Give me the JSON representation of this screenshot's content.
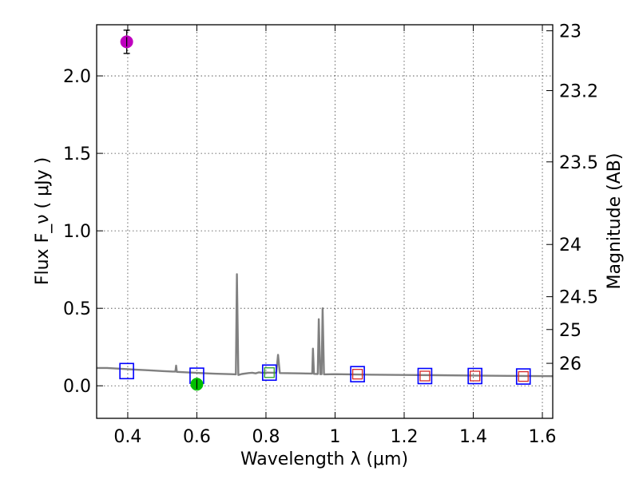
{
  "chart_data": {
    "type": "scatter",
    "title": "",
    "xlabel": "Wavelength  λ (μm)",
    "ylabel": "Flux  F_ν  ( μJy )",
    "ylabel_right": "Magnitude (AB)",
    "xlim": [
      0.31,
      1.63
    ],
    "ylim": [
      -0.21,
      2.33
    ],
    "grid": true,
    "x_ticks": [
      0.4,
      0.6,
      0.8,
      1.0,
      1.2,
      1.4,
      1.6
    ],
    "x_tick_labels": [
      "0.4",
      "0.6",
      "0.8",
      "1",
      "1.2",
      "1.4",
      "1.6"
    ],
    "y_ticks": [
      0.0,
      0.5,
      1.0,
      1.5,
      2.0
    ],
    "y_tick_labels": [
      "0.0",
      "0.5",
      "1.0",
      "1.5",
      "2.0"
    ],
    "right_ticks": [
      {
        "label": "23",
        "flux": 2.291
      },
      {
        "label": "23.2",
        "flux": 1.905
      },
      {
        "label": "23.5",
        "flux": 1.445
      },
      {
        "label": "24",
        "flux": 0.912
      },
      {
        "label": "24.5",
        "flux": 0.575
      },
      {
        "label": "25",
        "flux": 0.363
      },
      {
        "label": "26",
        "flux": 0.145
      }
    ],
    "model_spectrum": {
      "color": "#808080",
      "points": [
        [
          0.31,
          0.115
        ],
        [
          0.34,
          0.115
        ],
        [
          0.38,
          0.11
        ],
        [
          0.42,
          0.105
        ],
        [
          0.46,
          0.1
        ],
        [
          0.5,
          0.095
        ],
        [
          0.53,
          0.092
        ],
        [
          0.538,
          0.092
        ],
        [
          0.54,
          0.13
        ],
        [
          0.542,
          0.09
        ],
        [
          0.56,
          0.088
        ],
        [
          0.6,
          0.083
        ],
        [
          0.65,
          0.078
        ],
        [
          0.7,
          0.075
        ],
        [
          0.713,
          0.074
        ],
        [
          0.716,
          0.72
        ],
        [
          0.72,
          0.07
        ],
        [
          0.73,
          0.076
        ],
        [
          0.75,
          0.082
        ],
        [
          0.76,
          0.084
        ],
        [
          0.77,
          0.08
        ],
        [
          0.78,
          0.087
        ],
        [
          0.79,
          0.083
        ],
        [
          0.8,
          0.085
        ],
        [
          0.82,
          0.084
        ],
        [
          0.83,
          0.084
        ],
        [
          0.835,
          0.2
        ],
        [
          0.84,
          0.082
        ],
        [
          0.9,
          0.08
        ],
        [
          0.934,
          0.079
        ],
        [
          0.936,
          0.24
        ],
        [
          0.939,
          0.077
        ],
        [
          0.95,
          0.076
        ],
        [
          0.953,
          0.43
        ],
        [
          0.957,
          0.075
        ],
        [
          0.961,
          0.075
        ],
        [
          0.964,
          0.5
        ],
        [
          0.968,
          0.074
        ],
        [
          1.0,
          0.075
        ],
        [
          1.1,
          0.072
        ],
        [
          1.2,
          0.07
        ],
        [
          1.3,
          0.068
        ],
        [
          1.4,
          0.066
        ],
        [
          1.5,
          0.064
        ],
        [
          1.63,
          0.062
        ]
      ]
    },
    "series": [
      {
        "name": "model_photometry",
        "marker": "open-square",
        "color": "#0000ff",
        "x": [
          0.397,
          0.6,
          0.81,
          1.065,
          1.26,
          1.405,
          1.545
        ],
        "y": [
          0.095,
          0.065,
          0.085,
          0.075,
          0.063,
          0.063,
          0.06
        ]
      },
      {
        "name": "observed_filters",
        "marker": "small-open-square",
        "colors": [
          "#2ca02c",
          "#d62728",
          "#d62728",
          "#d62728",
          "#d62728"
        ],
        "x": [
          0.81,
          1.065,
          1.26,
          1.405,
          1.545
        ],
        "y": [
          0.085,
          0.075,
          0.063,
          0.063,
          0.06
        ]
      },
      {
        "name": "detections",
        "marker": "filled-circle",
        "x": [
          0.397,
          0.6
        ],
        "y": [
          2.22,
          0.01
        ],
        "yerr": [
          0.075,
          0.02
        ],
        "colors": [
          "#bf00bf",
          "#00bf00"
        ]
      }
    ]
  }
}
